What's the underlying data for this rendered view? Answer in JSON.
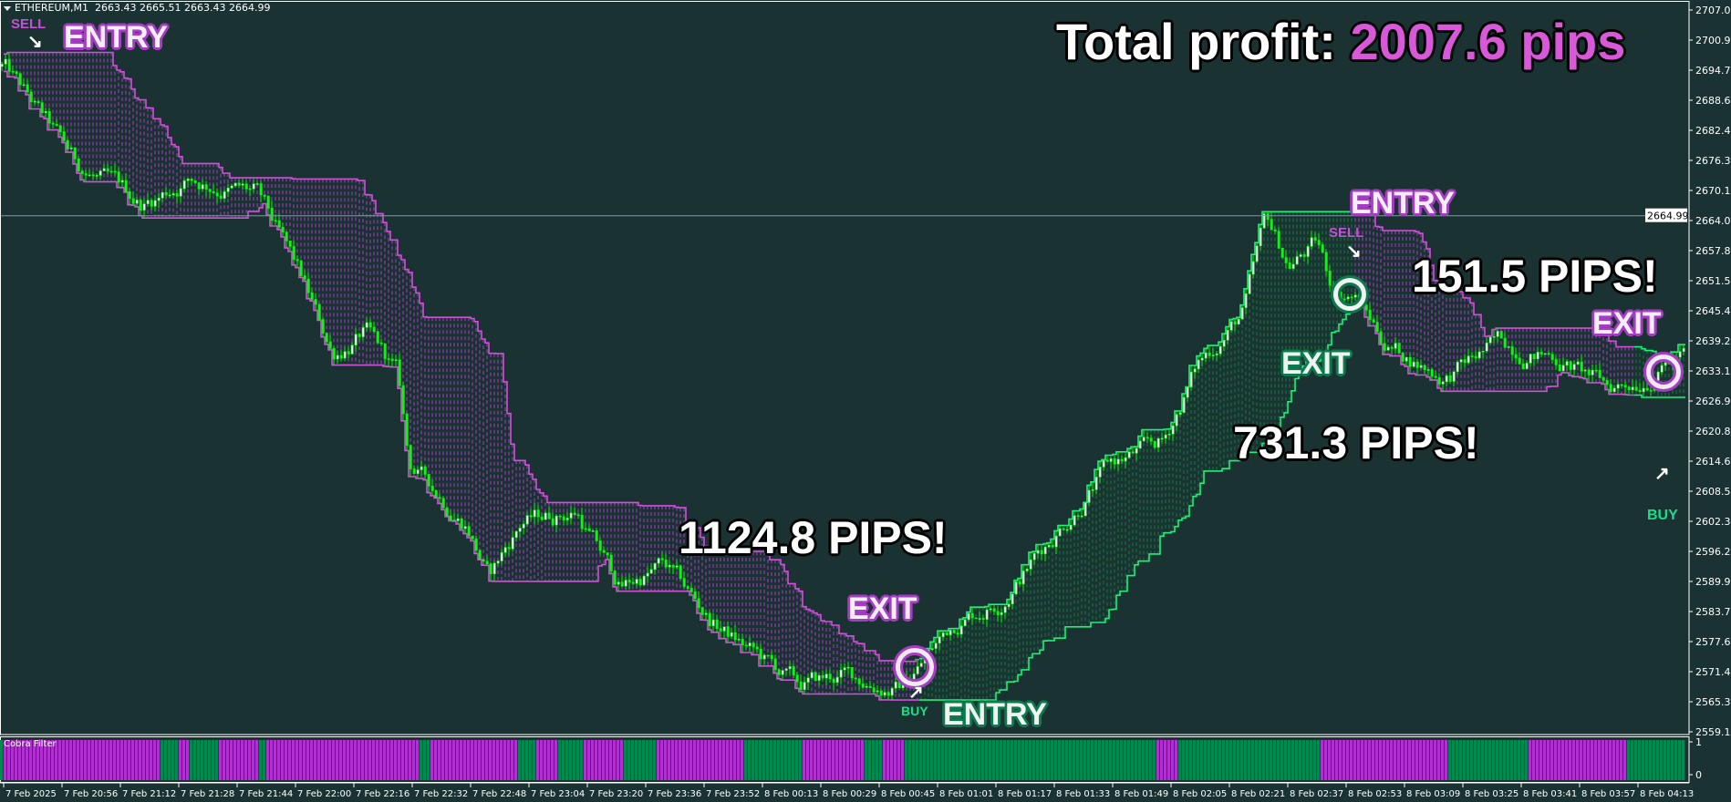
{
  "header": {
    "symbol": "ETHEREUM,M1",
    "ohlc": "2663.43 2665.51 2663.43 2664.99"
  },
  "total_profit": {
    "label": "Total profit:",
    "value": "2007.6 pips"
  },
  "annotations": {
    "entry1": "ENTRY",
    "sell1": "SELL",
    "pips1": "1124.8 PIPS!",
    "exit1": "EXIT",
    "buy1": "BUY",
    "entry2": "ENTRY",
    "pips2": "731.3 PIPS!",
    "exit2": "EXIT",
    "entry3": "ENTRY",
    "sell2": "SELL",
    "pips3": "151.5 PIPS!",
    "exit3": "EXIT",
    "buy2": "BUY"
  },
  "indicator": {
    "name": "Cobra Filter",
    "ticks": [
      "1",
      "0"
    ]
  },
  "colors": {
    "background": "#1b3233",
    "candle": "#00ff00",
    "sell_band": "#d050d8",
    "buy_band": "#1ef07a",
    "sell_hatch": "#c040e0",
    "buy_hatch": "#0e8a3a",
    "filter_sell": "#b030d0",
    "filter_buy": "#008a50",
    "axis": "#ffffff"
  },
  "chart_data": {
    "type": "candlestick",
    "title": "",
    "current_price": "2664.99",
    "y_ticks": [
      "2707.05",
      "2700.90",
      "2694.75",
      "2688.60",
      "2682.45",
      "2676.30",
      "2670.15",
      "2664.00",
      "2657.85",
      "2651.55",
      "2645.40",
      "2639.25",
      "2633.10",
      "2626.95",
      "2620.80",
      "2614.65",
      "2608.50",
      "2602.35",
      "2596.20",
      "2589.90",
      "2583.75",
      "2577.60",
      "2571.45",
      "2565.30",
      "2559.15"
    ],
    "x_ticks": [
      "7 Feb 2025",
      "7 Feb 20:56",
      "7 Feb 21:12",
      "7 Feb 21:28",
      "7 Feb 21:44",
      "7 Feb 22:00",
      "7 Feb 22:16",
      "7 Feb 22:32",
      "7 Feb 22:48",
      "7 Feb 23:04",
      "7 Feb 23:20",
      "7 Feb 23:36",
      "7 Feb 23:52",
      "8 Feb 00:13",
      "8 Feb 00:29",
      "8 Feb 00:45",
      "8 Feb 01:01",
      "8 Feb 01:17",
      "8 Feb 01:33",
      "8 Feb 01:49",
      "8 Feb 02:05",
      "8 Feb 02:21",
      "8 Feb 02:37",
      "8 Feb 02:53",
      "8 Feb 03:09",
      "8 Feb 03:25",
      "8 Feb 03:41",
      "8 Feb 03:57",
      "8 Feb 04:13"
    ],
    "ylim": [
      2559.15,
      2707.05
    ],
    "price_path": [
      [
        "20:40",
        2695.5
      ],
      [
        "21:00",
        2675.2
      ],
      [
        "21:18",
        2667.2
      ],
      [
        "21:31",
        2672.8
      ],
      [
        "21:49",
        2669.4
      ],
      [
        "22:01",
        2652.4
      ],
      [
        "22:10",
        2636.6
      ],
      [
        "22:19",
        2641.1
      ],
      [
        "22:28",
        2632.0
      ],
      [
        "22:31",
        2613.9
      ],
      [
        "22:47",
        2602.5
      ],
      [
        "22:53",
        2591.2
      ],
      [
        "23:02",
        2602.5
      ],
      [
        "23:17",
        2604.8
      ],
      [
        "23:29",
        2588.9
      ],
      [
        "23:41",
        2593.4
      ],
      [
        "23:54",
        2582.2
      ],
      [
        "00:10",
        2575.3
      ],
      [
        "00:23",
        2568.4
      ],
      [
        "00:35",
        2570.8
      ],
      [
        "00:50",
        2568.4
      ],
      [
        "00:56",
        2573.0
      ],
      [
        "01:06",
        2582.2
      ],
      [
        "01:18",
        2586.6
      ],
      [
        "01:33",
        2600.2
      ],
      [
        "01:48",
        2613.9
      ],
      [
        "02:03",
        2618.3
      ],
      [
        "02:12",
        2634.2
      ],
      [
        "02:25",
        2645.6
      ],
      [
        "02:31",
        2663.8
      ],
      [
        "02:37",
        2654.7
      ],
      [
        "02:45",
        2659.2
      ],
      [
        "02:49",
        2650.2
      ],
      [
        "02:55",
        2649.1
      ],
      [
        "03:04",
        2638.8
      ],
      [
        "03:20",
        2632.0
      ],
      [
        "03:35",
        2638.8
      ],
      [
        "03:50",
        2636.6
      ],
      [
        "04:05",
        2629.6
      ],
      [
        "04:14",
        2632.0
      ],
      [
        "04:23",
        2636.6
      ]
    ],
    "signals": [
      {
        "time": "20:40",
        "type": "sell"
      },
      {
        "time": "00:56",
        "type": "buy"
      },
      {
        "time": "02:55",
        "type": "sell"
      },
      {
        "time": "04:12",
        "type": "buy"
      }
    ],
    "band_regimes": [
      {
        "from": "20:40",
        "to": "00:56",
        "trend": "sell"
      },
      {
        "from": "00:56",
        "to": "02:55",
        "trend": "buy"
      },
      {
        "from": "02:55",
        "to": "04:12",
        "trend": "sell"
      },
      {
        "from": "04:12",
        "to": "04:27",
        "trend": "buy"
      }
    ],
    "cobra_filter": [
      [
        "20:40",
        "21:23",
        "sell"
      ],
      [
        "21:23",
        "21:28",
        "buy"
      ],
      [
        "21:28",
        "21:31",
        "sell"
      ],
      [
        "21:31",
        "21:39",
        "buy"
      ],
      [
        "21:39",
        "21:50",
        "sell"
      ],
      [
        "21:50",
        "21:52",
        "buy"
      ],
      [
        "21:52",
        "22:34",
        "sell"
      ],
      [
        "22:34",
        "22:37",
        "buy"
      ],
      [
        "22:37",
        "23:01",
        "sell"
      ],
      [
        "23:01",
        "23:06",
        "buy"
      ],
      [
        "23:06",
        "23:12",
        "sell"
      ],
      [
        "23:12",
        "23:19",
        "buy"
      ],
      [
        "23:19",
        "23:30",
        "sell"
      ],
      [
        "23:30",
        "23:39",
        "buy"
      ],
      [
        "23:39",
        "00:06",
        "sell"
      ],
      [
        "00:06",
        "00:24",
        "buy"
      ],
      [
        "00:24",
        "00:41",
        "sell"
      ],
      [
        "00:41",
        "00:46",
        "buy"
      ],
      [
        "00:46",
        "00:52",
        "sell"
      ],
      [
        "00:52",
        "02:01",
        "buy"
      ],
      [
        "02:01",
        "02:07",
        "sell"
      ],
      [
        "02:07",
        "02:46",
        "buy"
      ],
      [
        "02:46",
        "03:21",
        "sell"
      ],
      [
        "03:21",
        "03:43",
        "buy"
      ],
      [
        "03:43",
        "04:10",
        "sell"
      ],
      [
        "04:10",
        "04:27",
        "buy"
      ]
    ]
  }
}
